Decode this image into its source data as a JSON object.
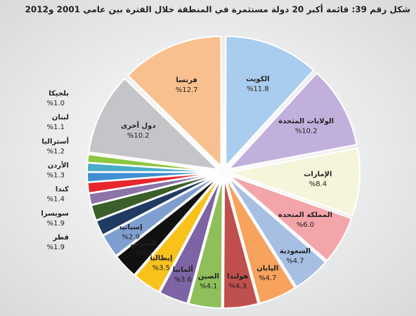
{
  "chart_data": {
    "type": "pie",
    "title": "شكل رقم 39:  قائمة أكبر 20 دولة مستثمرة في المنطقة خلال الفترة بين عامي 2001 و2012",
    "categories": [
      "الكويت",
      "الولايات المتحدة",
      "الإمارات",
      "المملكة المتحدة",
      "السعودية",
      "اليابان",
      "هولندا",
      "الصين",
      "ألمانيا",
      "إيطاليا",
      "البحرين",
      "إسبانيا",
      "قطر",
      "سويسرا",
      "كندا",
      "الأردن",
      "أستراليا",
      "لبنان",
      "بلجيكا",
      "دول أخرى",
      "فرنسا"
    ],
    "values": [
      11.8,
      10.2,
      8.4,
      6.0,
      4.7,
      4.7,
      4.3,
      4.1,
      3.6,
      3.5,
      3.1,
      2.9,
      1.9,
      1.9,
      1.4,
      1.3,
      1.2,
      1.1,
      1.0,
      10.2,
      12.7
    ],
    "value_labels": [
      "%11.8",
      "%10.2",
      "%8.4",
      "%6.0",
      "%4.7",
      "%4.7",
      "%4.3",
      "%4.1",
      "%3.6",
      "%3.5",
      "%3.1",
      "%2.9",
      "%1.9",
      "%1.9",
      "%1.4",
      "%1.3",
      "%1.2",
      "%1.1",
      "%1.0",
      "%10.2",
      "%12.7"
    ],
    "colors": [
      "#a9cdee",
      "#c2b0dc",
      "#f5f5dc",
      "#f4a5aa",
      "#a6bfe3",
      "#f7a25d",
      "#c0504d",
      "#8fbf5a",
      "#7e63a5",
      "#f9c21b",
      "#111111",
      "#7f9fd0",
      "#1f3b63",
      "#3a5f2a",
      "#8c73a8",
      "#e8262d",
      "#3f8fd2",
      "#4bacc6",
      "#8dc63f",
      "#c3c5c8",
      "#f9c08f"
    ]
  }
}
